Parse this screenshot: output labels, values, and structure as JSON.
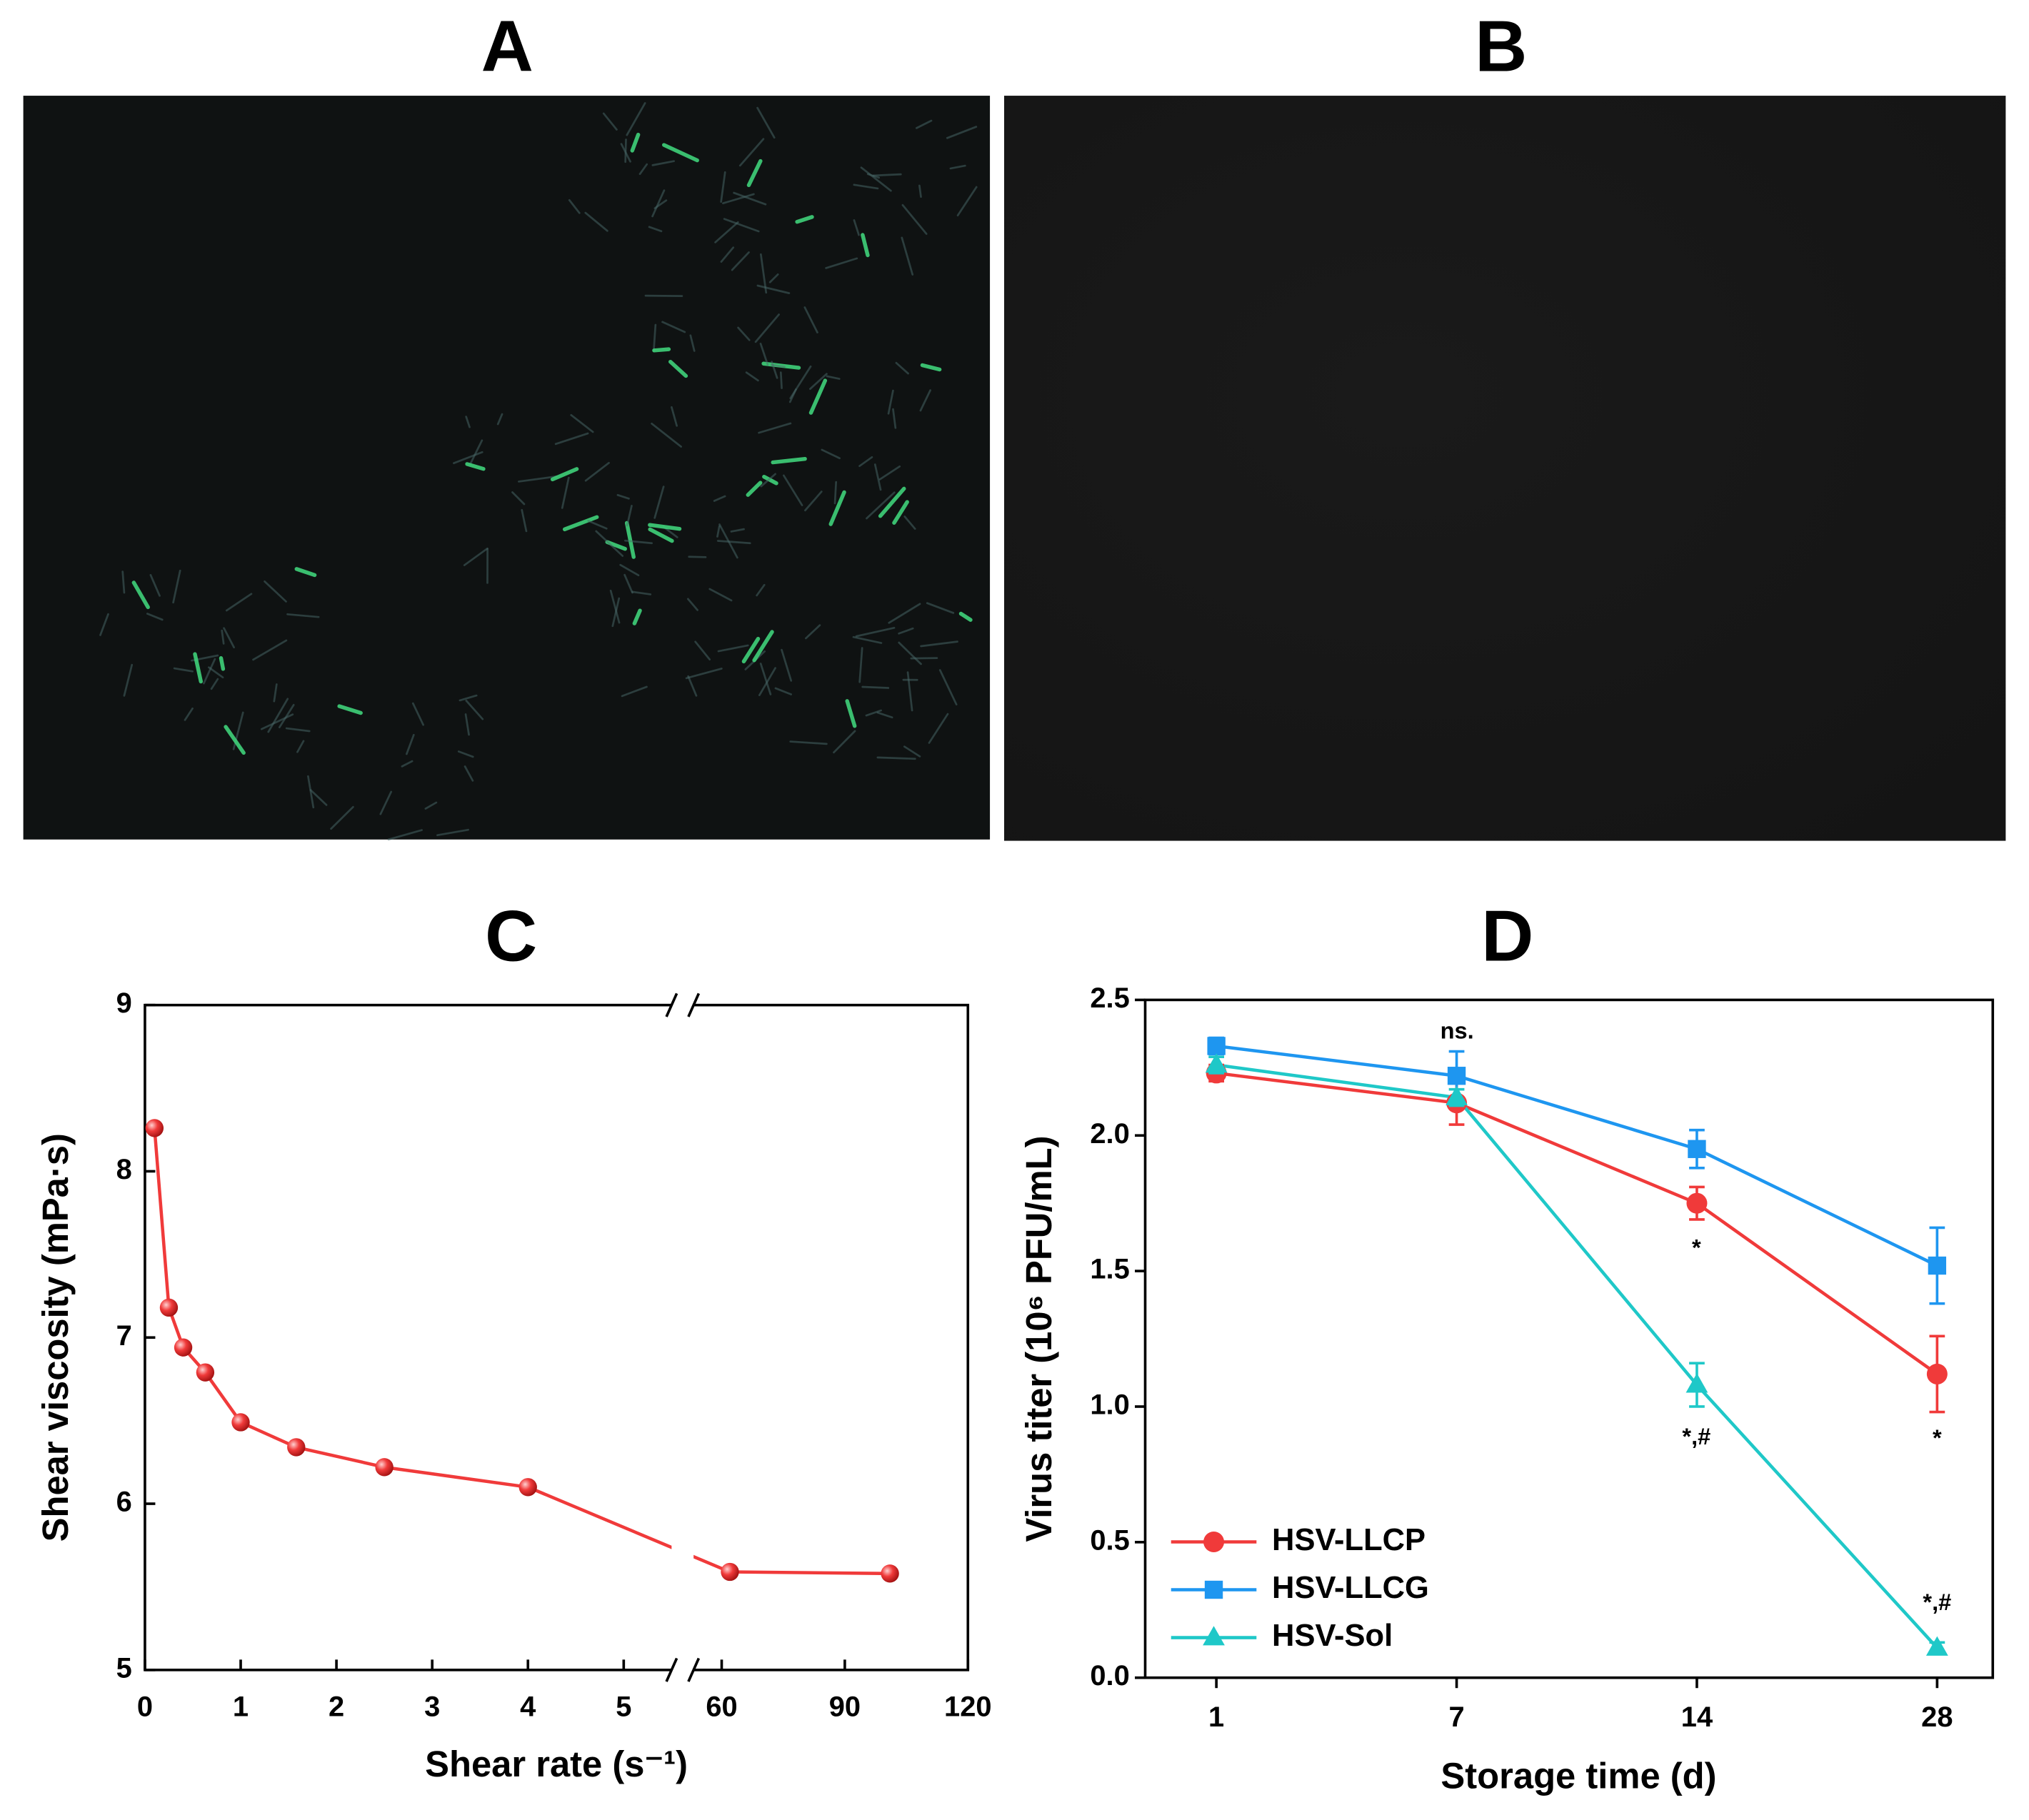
{
  "panel_labels": [
    "A",
    "B",
    "C",
    "D"
  ],
  "chart_data": [
    {
      "type": "line",
      "x_label": "Shear rate (s⁻¹)",
      "y_label": "Shear viscosity (mPa·s)",
      "x": [
        0.1,
        0.25,
        0.4,
        0.63,
        1,
        1.58,
        2.5,
        4,
        62,
        101
      ],
      "series": [
        {
          "color": "#f03a3a",
          "values": [
            8.26,
            7.18,
            6.94,
            6.79,
            6.49,
            6.34,
            6.22,
            6.1,
            5.59,
            5.58
          ]
        }
      ],
      "xlim": [
        0,
        120
      ],
      "xbreak": [
        5.5,
        50
      ],
      "xticks": [
        0,
        1,
        2,
        3,
        4,
        5,
        60,
        90,
        120
      ],
      "ylim": [
        5,
        9
      ],
      "yticks": [
        5,
        6,
        7,
        8,
        9
      ]
    },
    {
      "type": "line",
      "x_label": "Storage time (d)",
      "y_label": "Virus titer (10⁶ PFU/mL)",
      "categories": [
        "1",
        "7",
        "14",
        "28"
      ],
      "series": [
        {
          "name": "HSV-LLCP",
          "color": "#f03a3a",
          "marker": "circle",
          "values": [
            2.23,
            2.12,
            1.75,
            1.12
          ],
          "errors": [
            0.03,
            0.08,
            0.06,
            0.14
          ]
        },
        {
          "name": "HSV-LLCG",
          "color": "#1e96f0",
          "marker": "square",
          "values": [
            2.33,
            2.22,
            1.95,
            1.52
          ],
          "errors": [
            0.03,
            0.09,
            0.07,
            0.14
          ]
        },
        {
          "name": "HSV-Sol",
          "color": "#1fc8c8",
          "marker": "triangle",
          "values": [
            2.26,
            2.14,
            1.08,
            0.11
          ],
          "errors": [
            0.03,
            0.03,
            0.08,
            0.02
          ]
        }
      ],
      "ylim": [
        0,
        2.5
      ],
      "yticks": [
        {
          "value": 0,
          "label": "0.0"
        },
        0.5,
        {
          "value": 1,
          "label": "1.0"
        },
        1.5,
        {
          "value": 2,
          "label": "2.0"
        },
        2.5
      ],
      "legend": "lower left",
      "annotations": [
        "ns.",
        "*",
        "*,#",
        "*",
        "*,#"
      ]
    }
  ]
}
